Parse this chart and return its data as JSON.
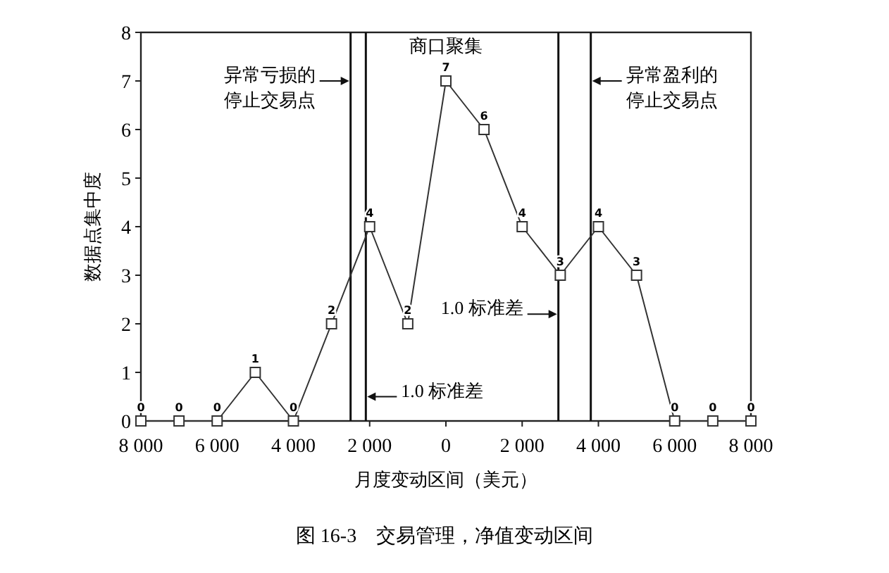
{
  "chart_data": {
    "type": "line",
    "xlabel": "月度变动区间（美元）",
    "ylabel": "数据点集中度",
    "x": [
      -8000,
      -7000,
      -6000,
      -5000,
      -4000,
      -3000,
      -2000,
      -1000,
      0,
      1000,
      2000,
      3000,
      4000,
      5000,
      6000,
      7000,
      8000
    ],
    "series": [
      {
        "color": "#333333",
        "values": [
          0,
          0,
          0,
          1,
          0,
          2,
          4,
          2,
          7,
          6,
          4,
          3,
          4,
          3,
          0,
          0,
          0
        ]
      }
    ],
    "xlim": [
      -8000,
      8000
    ],
    "xticks": [
      {
        "value": -8000,
        "label": "8 000"
      },
      {
        "value": -6000,
        "label": "6 000"
      },
      {
        "value": -4000,
        "label": "4 000"
      },
      {
        "value": -2000,
        "label": "2 000"
      },
      0,
      {
        "value": 2000,
        "label": "2 000"
      },
      {
        "value": 4000,
        "label": "4 000"
      },
      {
        "value": 6000,
        "label": "6 000"
      },
      {
        "value": 8000,
        "label": "8 000"
      }
    ],
    "ylim": [
      0,
      8
    ],
    "yticks": [
      0,
      1,
      2,
      3,
      4,
      5,
      6,
      7,
      8
    ],
    "marker": "square",
    "line_style": "solid",
    "grid": false,
    "data_labels": true,
    "ref_lines": [
      {
        "axis": "x",
        "value": -2500,
        "label": "异常亏损的停止交易点"
      },
      {
        "axis": "x",
        "value": -2100,
        "label": "1.0 标准差"
      },
      {
        "axis": "x",
        "value": 2950,
        "label": "1.0 标准差"
      },
      {
        "axis": "x",
        "value": 3800,
        "label": "异常盈利的停止交易点"
      }
    ],
    "annotations": [
      "商口聚集",
      "图 16-3　交易管理，净值变动区间"
    ]
  }
}
